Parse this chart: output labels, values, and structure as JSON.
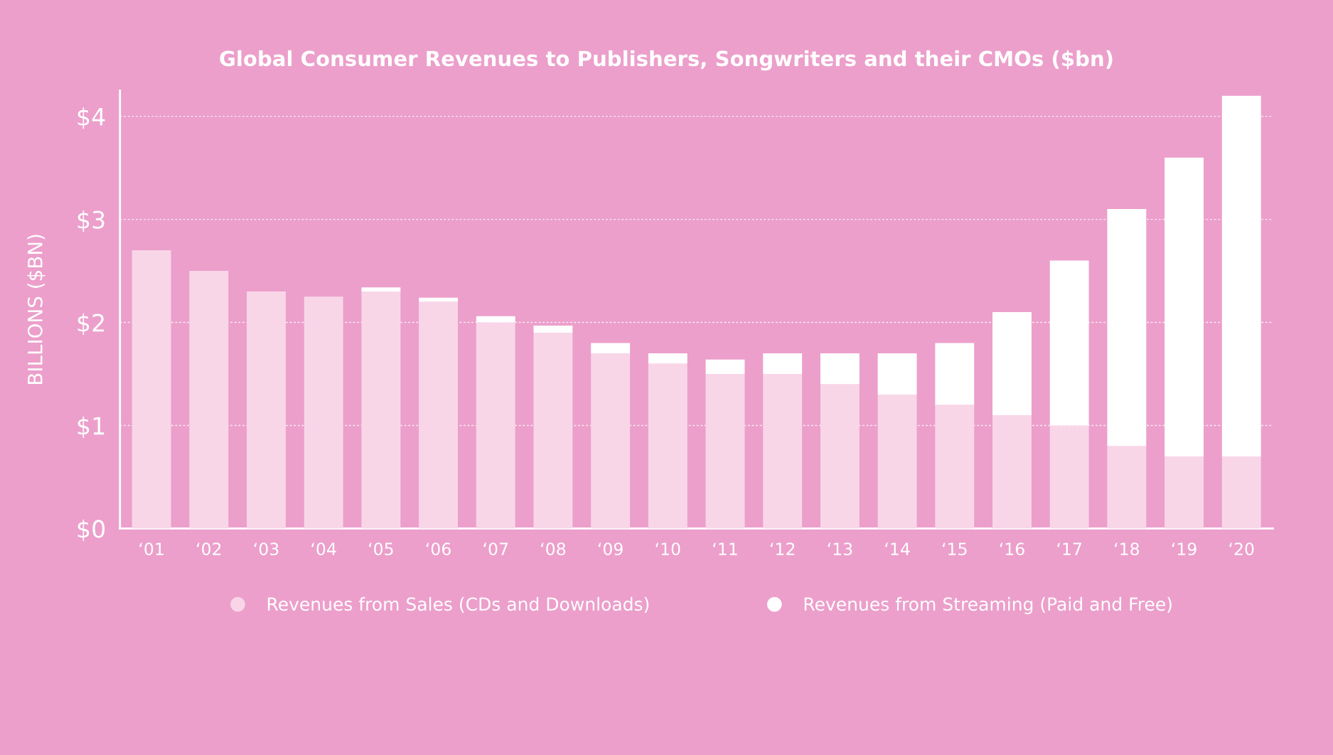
{
  "chart_data": {
    "type": "bar",
    "title": "Global Consumer Revenues to Publishers, Songwriters and their CMOs ($bn)",
    "ylabel": "BILLIONS ($BN)",
    "categories": [
      "‘01",
      "‘02",
      "‘03",
      "‘04",
      "‘05",
      "‘06",
      "‘07",
      "‘08",
      "‘09",
      "‘10",
      "‘11",
      "‘12",
      "‘13",
      "‘14",
      "‘15",
      "‘16",
      "‘17",
      "‘18",
      "‘19",
      "‘20"
    ],
    "stacked": true,
    "series": [
      {
        "name": "Revenues from Sales (CDs and Downloads)",
        "color": "#f8d6e8",
        "values": [
          2.7,
          2.5,
          2.3,
          2.25,
          2.3,
          2.2,
          2.0,
          1.9,
          1.7,
          1.6,
          1.5,
          1.5,
          1.4,
          1.3,
          1.2,
          1.1,
          1.0,
          0.8,
          0.7,
          0.7
        ]
      },
      {
        "name": "Revenues from Streaming (Paid and Free)",
        "color": "#ffffff",
        "values": [
          0,
          0,
          0,
          0,
          0.04,
          0.04,
          0.06,
          0.07,
          0.1,
          0.1,
          0.14,
          0.2,
          0.3,
          0.4,
          0.6,
          1.0,
          1.6,
          2.3,
          2.9,
          3.5
        ]
      }
    ],
    "ylim": [
      0,
      4.25
    ],
    "yticks": [
      {
        "value": 0,
        "label": "$0"
      },
      {
        "value": 1,
        "label": "$1"
      },
      {
        "value": 2,
        "label": "$2"
      },
      {
        "value": 3,
        "label": "$3"
      },
      {
        "value": 4,
        "label": "$4"
      }
    ],
    "grid": "y",
    "legend": "bottom"
  }
}
